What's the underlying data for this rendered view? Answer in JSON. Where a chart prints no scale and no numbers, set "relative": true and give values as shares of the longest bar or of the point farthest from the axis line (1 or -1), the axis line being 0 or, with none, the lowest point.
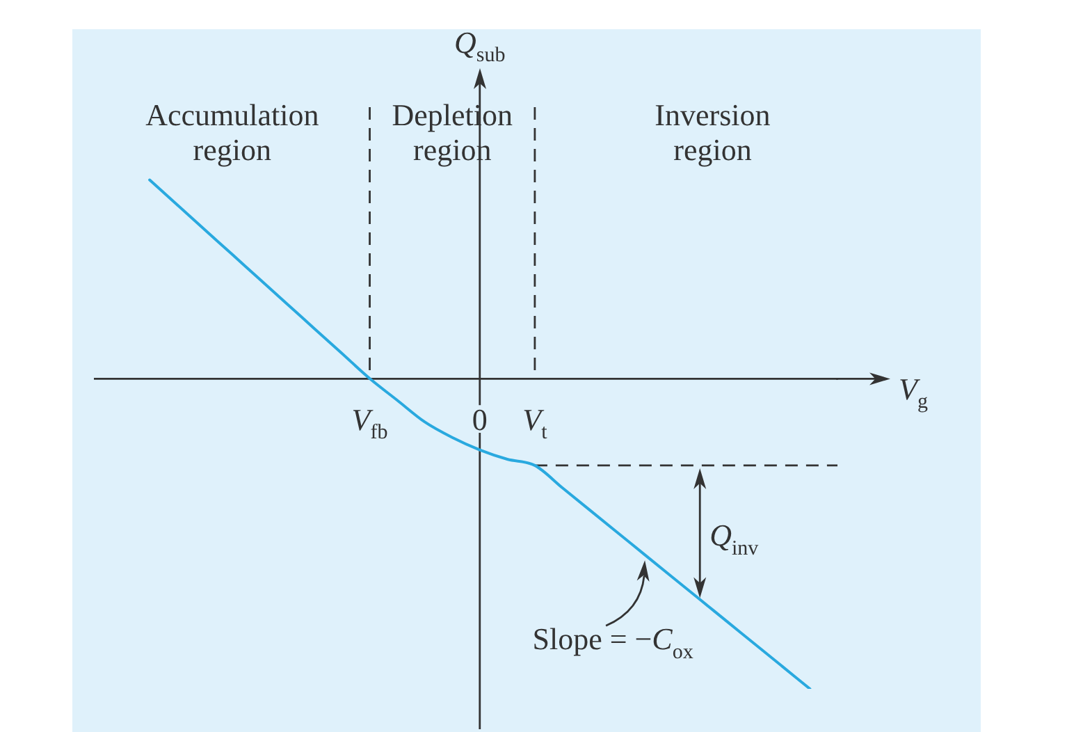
{
  "chart_data": {
    "type": "line",
    "relative": true,
    "xlabel": "V$_{g}$",
    "ylabel": "Q$_{sub}$",
    "categories": [
      null,
      null,
      null,
      null,
      null,
      null,
      null,
      null,
      null,
      null,
      "V$_{fb}$",
      null,
      null,
      null,
      "0",
      null,
      "V$_{t}$",
      null,
      null,
      null,
      null,
      null,
      null,
      null,
      null,
      null,
      null,
      null
    ],
    "series": [
      {
        "color": "#29a9df",
        "values": [
          null,
          null,
          0.64,
          0.56,
          0.48,
          0.4,
          0.32,
          0.24,
          0.16,
          0.08,
          0,
          -0.07,
          -0.14,
          -0.19,
          -0.23,
          -0.26,
          -0.28,
          -0.352,
          -0.424,
          -0.496,
          -0.568,
          -0.64,
          -0.712,
          -0.784,
          -0.856,
          -0.928,
          -1,
          null
        ]
      },
      {
        "color": "#333333",
        "line_style": "dashed",
        "values": [
          null,
          null,
          null,
          null,
          null,
          null,
          null,
          null,
          null,
          null,
          null,
          null,
          null,
          null,
          null,
          null,
          -0.28,
          -0.28,
          -0.28,
          -0.28,
          -0.28,
          -0.28,
          -0.28,
          -0.28,
          -0.28,
          -0.28,
          -0.28,
          -0.28
        ]
      }
    ],
    "ref_lines": [
      {
        "axis": "x",
        "value": "0",
        "line_style": "solid"
      },
      {
        "axis": "x",
        "value": "V$_{fb}$",
        "line_style": "dashed"
      },
      {
        "axis": "x",
        "value": "V$_{t}$",
        "line_style": "dashed"
      }
    ],
    "annotations": [
      "Accumulation region",
      "Depletion region",
      "Inversion region",
      "Q$_{inv}$",
      "Slope = −C$_{ox}$"
    ]
  }
}
